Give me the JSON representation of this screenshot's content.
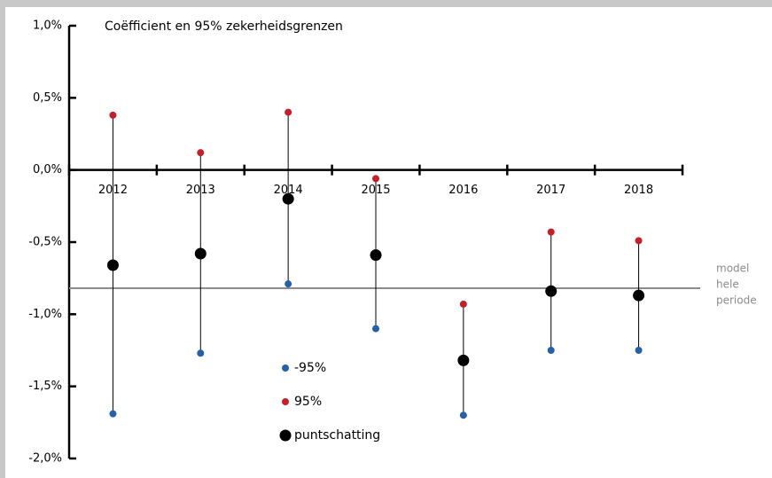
{
  "chart_data": {
    "type": "dot",
    "title": "Coëfficient en 95% zekerheidsgrenzen",
    "categories": [
      "2012",
      "2013",
      "2014",
      "2015",
      "2016",
      "2017",
      "2018"
    ],
    "series": [
      {
        "name": "-95%",
        "color": "#2560a8",
        "values": [
          -1.69,
          -1.27,
          -0.79,
          -1.1,
          -1.7,
          -1.25,
          -1.25
        ]
      },
      {
        "name": "95%",
        "color": "#c4202b",
        "values": [
          0.38,
          0.12,
          0.4,
          -0.06,
          -0.93,
          -0.43,
          -0.49
        ]
      },
      {
        "name": "puntschatting",
        "color": "#000000",
        "values": [
          -0.66,
          -0.58,
          -0.2,
          -0.59,
          -1.32,
          -0.84,
          -0.87
        ]
      }
    ],
    "reference": {
      "value": -0.82,
      "color": "#8c8c8c",
      "label": [
        "model",
        "hele",
        "periode"
      ]
    },
    "ylim": [
      -2.0,
      1.0
    ],
    "yticks": [
      {
        "value": 1.0,
        "label": "1,0%"
      },
      {
        "value": 0.5,
        "label": "0,5%"
      },
      {
        "value": 0.0,
        "label": "0,0%"
      },
      {
        "value": -0.5,
        "label": "-0,5%"
      },
      {
        "value": -1.0,
        "label": "-1,0%"
      },
      {
        "value": -1.5,
        "label": "-1,5%"
      },
      {
        "value": -2.0,
        "label": "-2,0%"
      }
    ]
  }
}
